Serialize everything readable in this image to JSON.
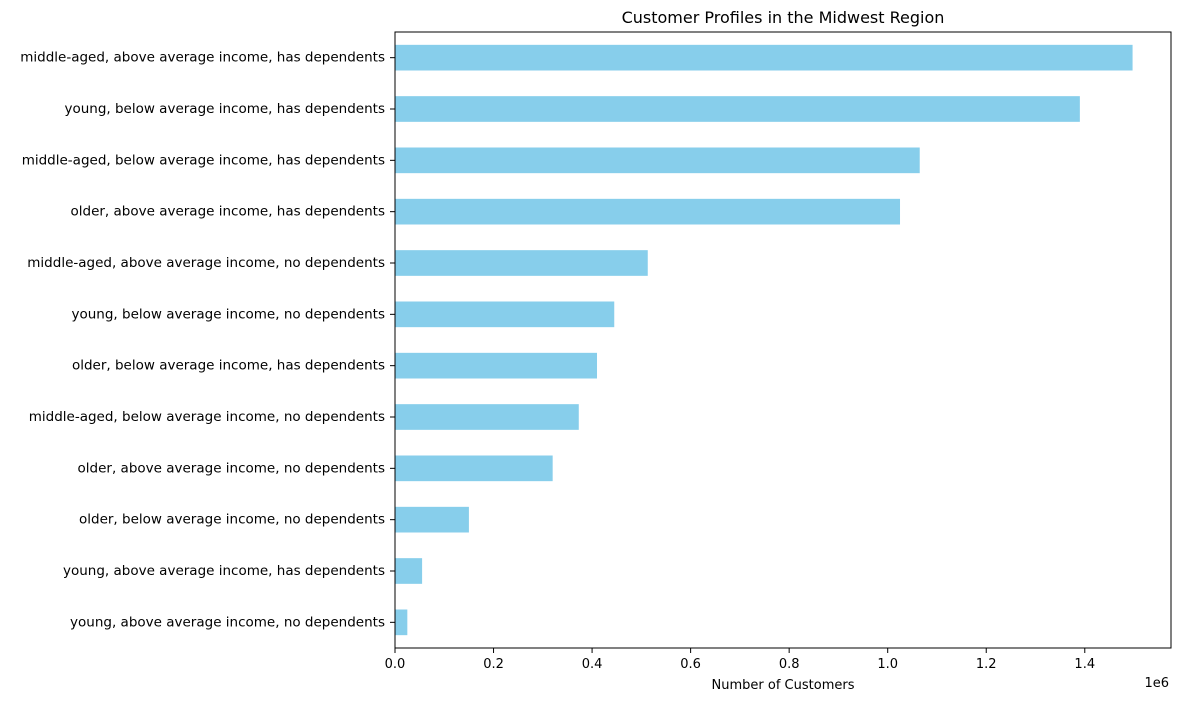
{
  "chart_data": {
    "type": "bar",
    "orientation": "horizontal",
    "title": "Customer Profiles in the Midwest Region",
    "xlabel": "Number of Customers",
    "ylabel": "",
    "offset_text": "1e6",
    "xlim": [
      0,
      1.575
    ],
    "xticks": [
      "0.0",
      "0.2",
      "0.4",
      "0.6",
      "0.8",
      "1.0",
      "1.2",
      "1.4"
    ],
    "xtick_values": [
      0,
      0.2,
      0.4,
      0.6,
      0.8,
      1.0,
      1.2,
      1.4
    ],
    "categories": [
      "middle-aged, above average income, has dependents",
      "young, below average income, has dependents",
      "middle-aged, below average income, has dependents",
      "older, above average income, has dependents",
      "middle-aged, above average income, no dependents",
      "young, below average income, no dependents",
      "older, below average income, has dependents",
      "middle-aged, below average income, no dependents",
      "older, above average income, no dependents",
      "older, below average income, no dependents",
      "young, above average income, has dependents",
      "young, above average income, no dependents"
    ],
    "values": [
      1.497,
      1.39,
      1.065,
      1.025,
      0.513,
      0.445,
      0.41,
      0.373,
      0.32,
      0.15,
      0.055,
      0.025
    ],
    "bar_color": "#87CEEB",
    "grid": false,
    "legend": "none"
  }
}
